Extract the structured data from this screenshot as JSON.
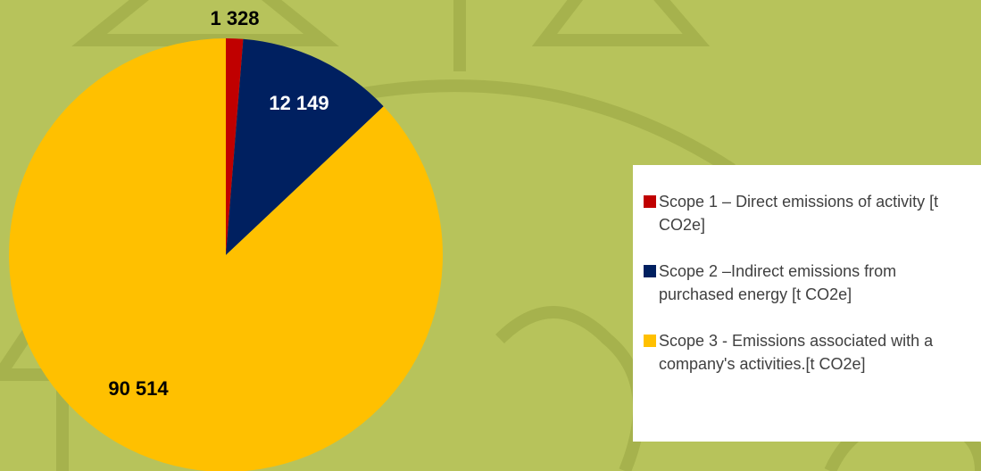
{
  "chart_data": {
    "type": "pie",
    "categories": [
      "Scope 1 – Direct emissions of activity [t CO2e]",
      "Scope 2 –Indirect emissions from purchased energy [t CO2e]",
      "Scope 3 - Emissions associated with a company's activities.[t CO2e]"
    ],
    "values": [
      1328,
      12149,
      90514
    ],
    "value_labels": [
      "1 328",
      "12 149",
      "90 514"
    ],
    "colors": [
      "#c00000",
      "#002060",
      "#ffc000"
    ],
    "legend": "right"
  }
}
